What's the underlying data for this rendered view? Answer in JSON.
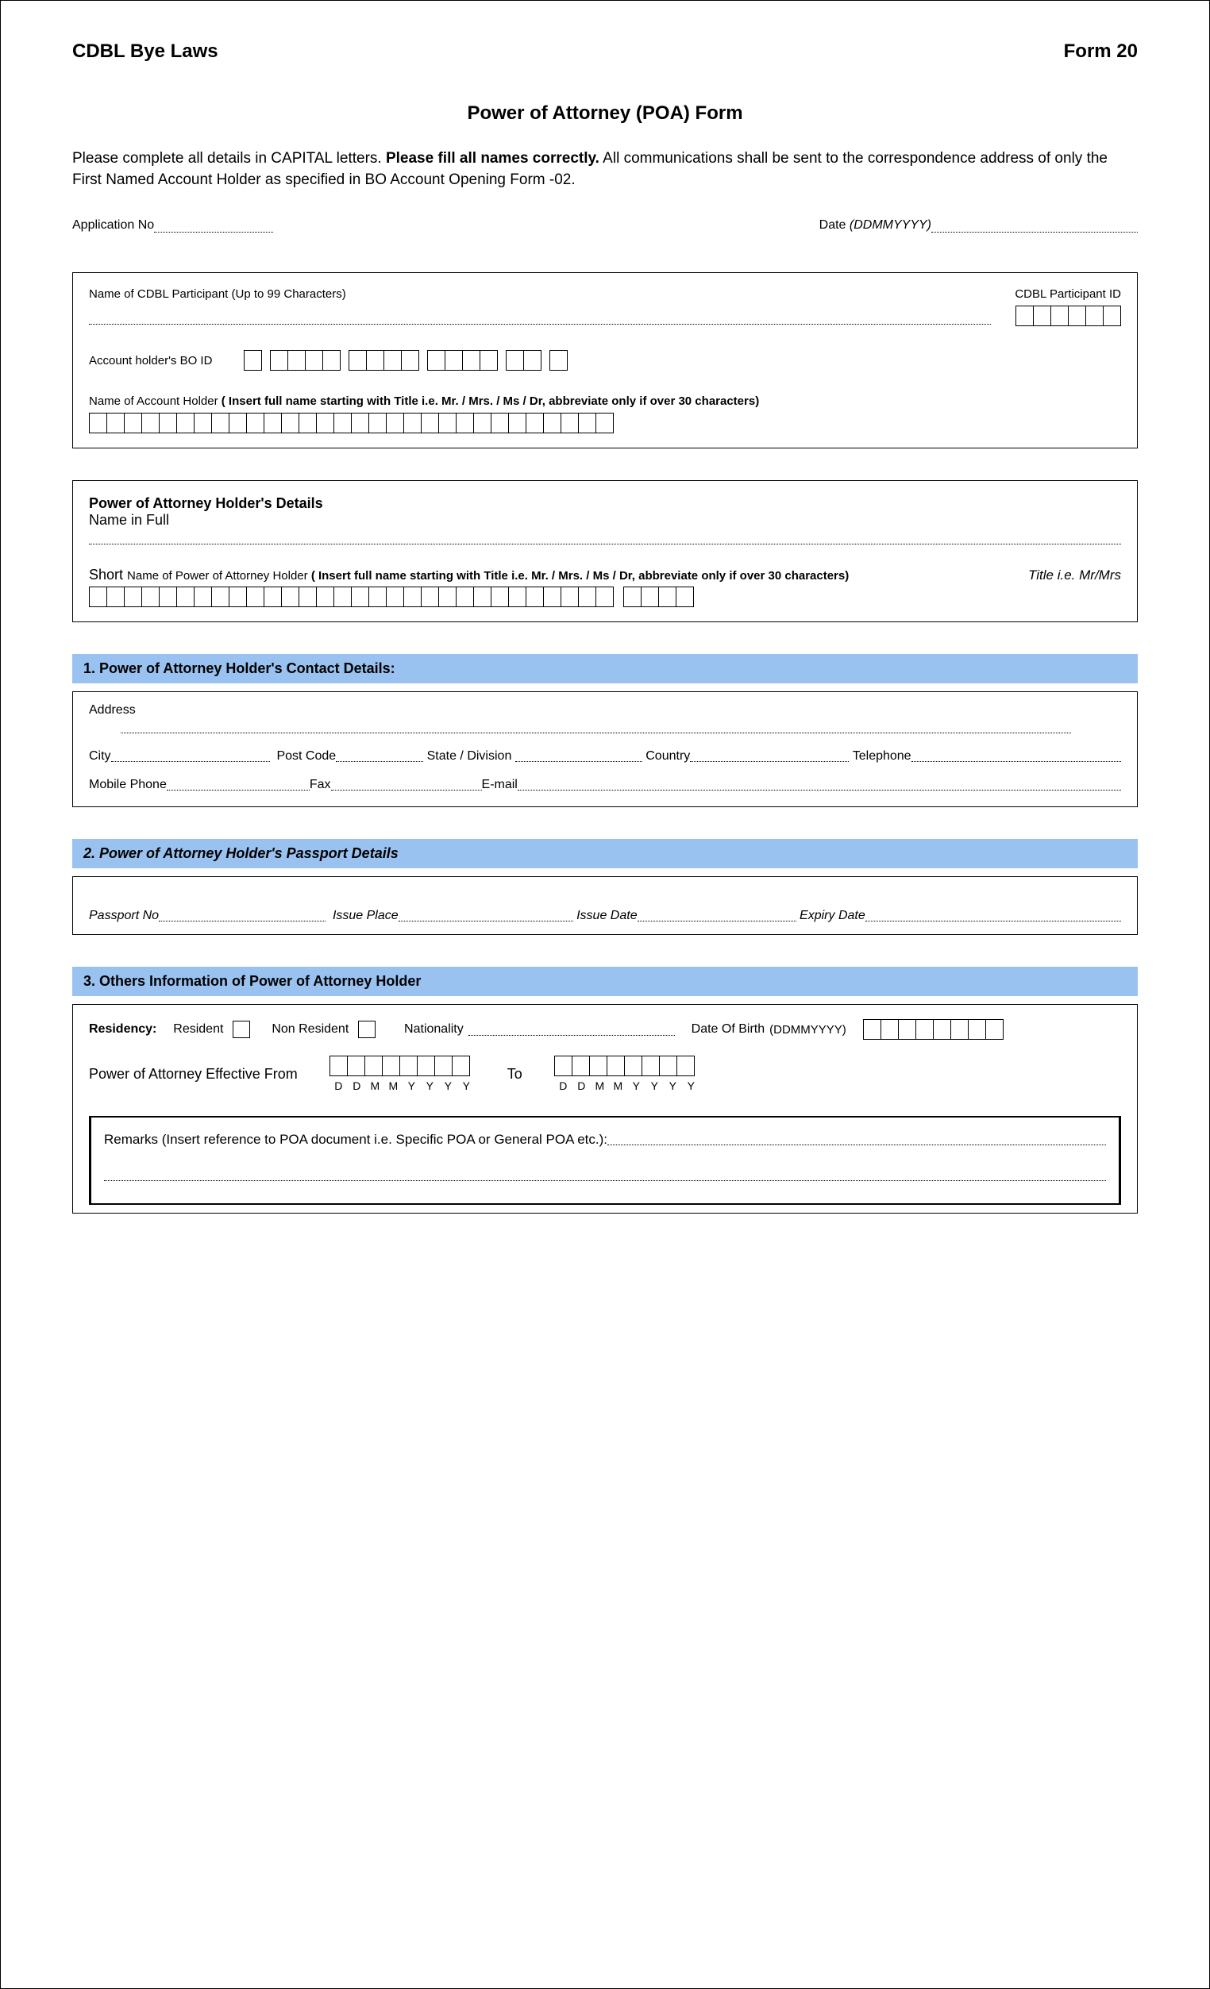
{
  "header": {
    "left": "CDBL Bye Laws",
    "right": "Form 20"
  },
  "title": "Power of Attorney (POA) Form",
  "instructions": {
    "pre": "Please complete all details in CAPITAL letters.  ",
    "bold": "Please fill all names correctly.",
    "post": " All communications shall be sent to the correspondence address of only the First Named Account Holder as specified in BO Account Opening Form -02."
  },
  "app_row": {
    "app_no_label": "Application No",
    "date_label": "Date ",
    "date_format": "(DDMMYYYY)"
  },
  "box1": {
    "participant_label": "Name of CDBL Participant (Up to 99 Characters)",
    "participant_id_label": "CDBL Participant ID",
    "participant_id_cells": 6,
    "bo_id_label": "Account holder's BO ID",
    "bo_id_groups": [
      1,
      4,
      4,
      4,
      2,
      1
    ],
    "holder_name_label_pre": "Name of Account Holder ",
    "holder_name_label_bold": "( Insert full name starting with Title i.e. Mr. / Mrs. / Ms / Dr, abbreviate only if over 30 characters)",
    "holder_name_cells": 30
  },
  "box2": {
    "heading": "Power of Attorney Holder's Details",
    "name_full": "Name in Full",
    "short_pre": "Short ",
    "short_label": "Name of Power of Attorney Holder ",
    "short_bold": "( Insert full name starting with Title i.e. Mr. / Mrs. / Ms / Dr, abbreviate only if over 30 characters)",
    "title_hint": "Title i.e. Mr/Mrs",
    "short_cells": 30,
    "title_cells": 4
  },
  "section1": {
    "header": "1. Power of Attorney Holder's Contact Details:",
    "address": "Address",
    "city": "City",
    "postcode": "Post Code",
    "state": "State / Division",
    "country": "Country",
    "telephone": "Telephone",
    "mobile": "Mobile Phone",
    "fax": "Fax",
    "email": "E-mail"
  },
  "section2": {
    "header": "2. Power of Attorney Holder's Passport Details",
    "passport_no": "Passport No",
    "issue_place": "Issue Place",
    "issue_date": "Issue Date",
    "expiry_date": "Expiry Date"
  },
  "section3": {
    "header": "3. Others Information of  Power of Attorney Holder",
    "residency": "Residency:",
    "resident": "Resident",
    "non_resident": "Non Resident",
    "nationality": "Nationality",
    "dob": "Date Of Birth  ",
    "dob_format": "(DDMMYYYY)",
    "dob_cells": 8,
    "effective_from": "Power of Attorney Effective From",
    "to": "To",
    "date_letters": [
      "D",
      "D",
      "M",
      "M",
      "Y",
      "Y",
      "Y",
      "Y"
    ],
    "remarks": "Remarks (Insert reference to POA document i.e. Specific POA or General POA etc.):"
  },
  "colors": {
    "section_bg": "#99c2f0",
    "border": "#000000",
    "text": "#000000"
  }
}
